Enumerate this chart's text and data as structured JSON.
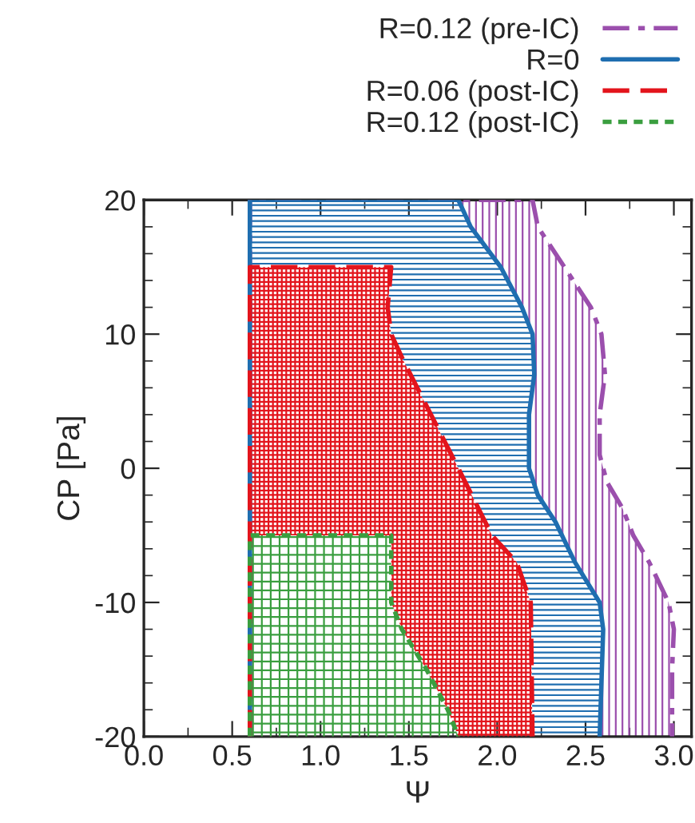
{
  "chart_data": {
    "type": "area",
    "xlabel": "Ψ",
    "ylabel": "CP [Pa]",
    "xlim": [
      0,
      3.1
    ],
    "xticks": [
      {
        "value": 0,
        "label": "0.0"
      },
      0.5,
      {
        "value": 1,
        "label": "1.0"
      },
      1.5,
      {
        "value": 2,
        "label": "2.0"
      },
      2.5,
      {
        "value": 3,
        "label": "3.0"
      }
    ],
    "ylim": [
      -20,
      20
    ],
    "yticks": [
      -20,
      -10,
      0,
      10,
      20
    ],
    "grid": false,
    "legend": "top right",
    "series": [
      {
        "name": "R=0.12 (pre-IC)",
        "color": "#9b4fad",
        "line_style": "dashdot",
        "x": [
          0.6,
          0.6,
          2.2,
          2.23,
          2.38,
          2.53,
          2.59,
          2.61,
          2.58,
          2.58,
          2.62,
          2.71,
          2.77,
          2.86,
          2.97,
          3.0,
          2.99,
          2.99
        ],
        "values": [
          -20,
          20,
          20,
          18,
          15,
          12,
          10,
          7,
          4,
          1,
          -1,
          -3,
          -5,
          -7,
          -10,
          -12,
          -15,
          -20
        ]
      },
      {
        "name": "R=0",
        "color": "#1f6eb0",
        "line_style": "solid",
        "x": [
          0.6,
          0.6,
          1.78,
          1.85,
          2.02,
          2.14,
          2.2,
          2.21,
          2.18,
          2.18,
          2.23,
          2.33,
          2.44,
          2.58,
          2.6,
          2.58
        ],
        "values": [
          -20,
          20,
          20,
          18,
          15,
          12,
          10,
          7,
          4,
          0,
          -2,
          -4,
          -7,
          -10,
          -12,
          -20
        ]
      },
      {
        "name": "R=0.06 (post-IC)",
        "color": "#e3141c",
        "line_style": "dashed",
        "x": [
          0.6,
          0.6,
          1.4,
          1.38,
          1.4,
          1.47,
          1.78,
          1.97,
          2.11,
          2.19,
          2.2
        ],
        "values": [
          -20,
          15,
          15,
          12,
          10,
          8,
          0,
          -5,
          -7,
          -10,
          -20
        ]
      },
      {
        "name": "R=0.12 (post-IC)",
        "color": "#3a9e3f",
        "line_style": "dotted",
        "x": [
          0.6,
          0.6,
          1.4,
          1.4,
          1.46,
          1.6,
          1.72,
          1.78
        ],
        "values": [
          -20,
          -5,
          -5,
          -10,
          -12,
          -15,
          -18,
          -20
        ]
      }
    ]
  }
}
